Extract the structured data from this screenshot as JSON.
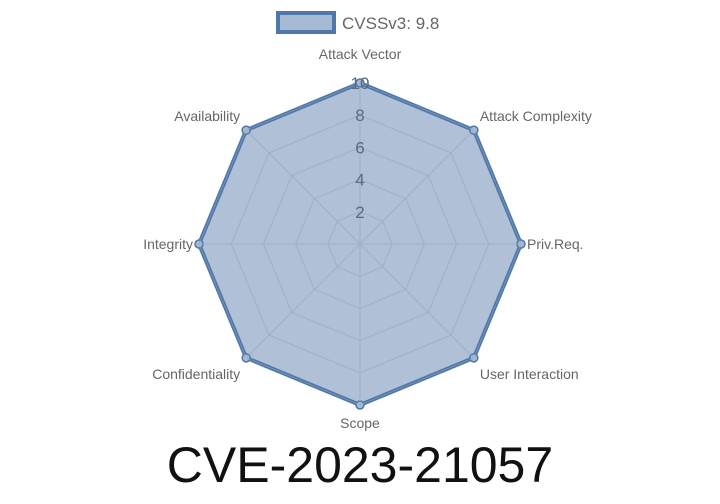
{
  "chart_data": {
    "type": "radar",
    "title": "CVE-2023-21057",
    "categories": [
      "Attack Vector",
      "Attack Complexity",
      "Priv.Req.",
      "User Interaction",
      "Scope",
      "Confidentiality",
      "Integrity",
      "Availability"
    ],
    "series": [
      {
        "name": "CVSSv3: 9.8",
        "values": [
          10,
          10,
          10,
          10,
          10,
          10,
          10,
          10
        ]
      }
    ],
    "rlim": [
      0,
      10
    ],
    "ticks": [
      "2",
      "4",
      "6",
      "8",
      "10"
    ],
    "tick_values": [
      2,
      4,
      6,
      8,
      10
    ],
    "grid": true,
    "legend": "top",
    "colors": {
      "fill": "#a7bad3",
      "stroke": "#4f78a8",
      "grid": "#9aa9bd",
      "text": "#666666"
    }
  }
}
